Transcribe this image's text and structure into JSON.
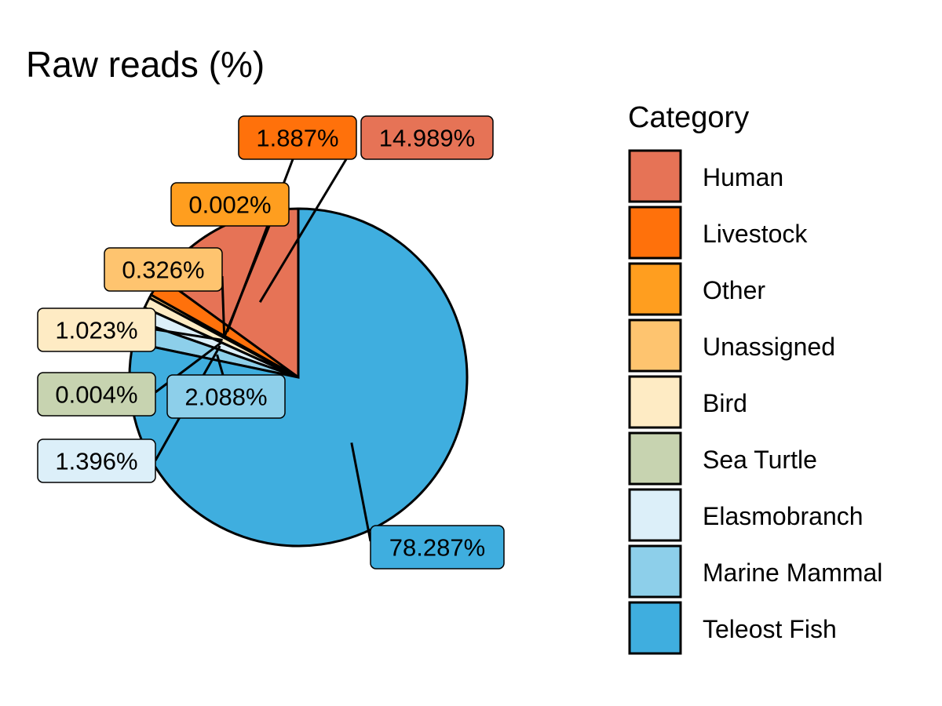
{
  "chart_data": {
    "type": "pie",
    "title": "Raw reads (%)",
    "legend_title": "Category",
    "legend_position": "right",
    "slices": [
      {
        "category": "Human",
        "value": 14.989,
        "label": "14.989%",
        "color": "#E67356"
      },
      {
        "category": "Livestock",
        "value": 1.887,
        "label": "1.887%",
        "color": "#FF710B"
      },
      {
        "category": "Other",
        "value": 0.002,
        "label": "0.002%",
        "color": "#FF9E1F"
      },
      {
        "category": "Unassigned",
        "value": 0.326,
        "label": "0.326%",
        "color": "#FEC46F"
      },
      {
        "category": "Bird",
        "value": 1.023,
        "label": "1.023%",
        "color": "#FEEBC4"
      },
      {
        "category": "Sea Turtle",
        "value": 0.004,
        "label": "0.004%",
        "color": "#C7D3B0"
      },
      {
        "category": "Elasmobranch",
        "value": 1.396,
        "label": "1.396%",
        "color": "#DCEFF9"
      },
      {
        "category": "Marine Mammal",
        "value": 2.088,
        "label": "2.088%",
        "color": "#8DCFEA"
      },
      {
        "category": "Teleost Fish",
        "value": 78.287,
        "label": "78.287%",
        "color": "#3FAEDF"
      }
    ]
  }
}
